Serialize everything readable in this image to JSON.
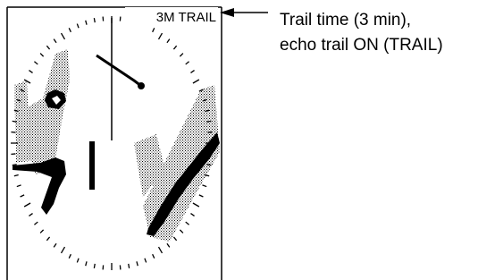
{
  "display_label": "3M TRAIL",
  "callout": {
    "lines": [
      "Trail time (3 min),",
      "echo trail ON (TRAIL)"
    ]
  }
}
